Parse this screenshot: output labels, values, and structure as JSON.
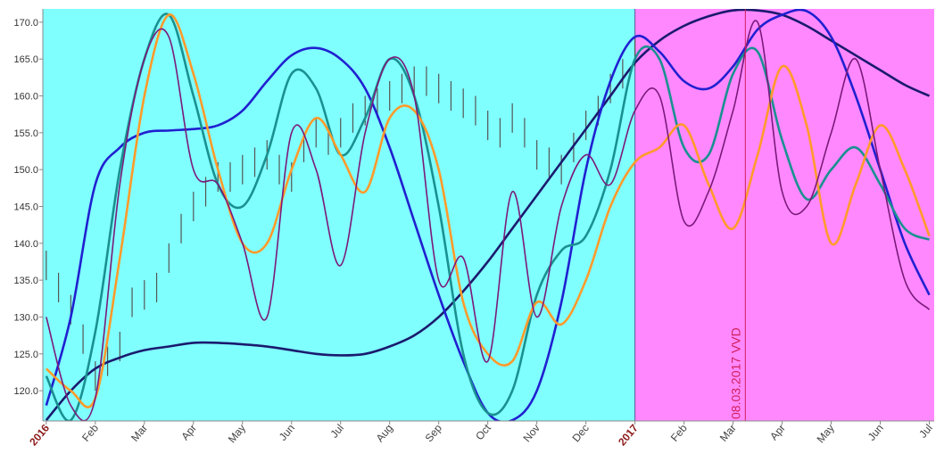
{
  "chart_data": {
    "type": "line",
    "xlim": [
      -0.07,
      18.1
    ],
    "ylim": [
      115.9,
      171.8
    ],
    "xticks": [
      {
        "value": 0,
        "label": "2016"
      },
      {
        "value": 1,
        "label": "Feb"
      },
      {
        "value": 2,
        "label": "Mar"
      },
      {
        "value": 3,
        "label": "Apr"
      },
      {
        "value": 4,
        "label": "May"
      },
      {
        "value": 5,
        "label": "Jun"
      },
      {
        "value": 6,
        "label": "Jul"
      },
      {
        "value": 7,
        "label": "Aug"
      },
      {
        "value": 8,
        "label": "Sep"
      },
      {
        "value": 9,
        "label": "Oct"
      },
      {
        "value": 10,
        "label": "Nov"
      },
      {
        "value": 11,
        "label": "Dec"
      },
      {
        "value": 12,
        "label": "2017"
      },
      {
        "value": 13,
        "label": "Feb"
      },
      {
        "value": 14,
        "label": "Mar"
      },
      {
        "value": 15,
        "label": "Apr"
      },
      {
        "value": 16,
        "label": "May"
      },
      {
        "value": 17,
        "label": "Jun"
      },
      {
        "value": 18,
        "label": "Jul"
      }
    ],
    "yticks": [
      {
        "value": 120,
        "label": "120.0"
      },
      {
        "value": 125,
        "label": "125.0"
      },
      {
        "value": 130,
        "label": "130.0"
      },
      {
        "value": 135,
        "label": "135.0"
      },
      {
        "value": 140,
        "label": "140.0"
      },
      {
        "value": 145,
        "label": "145.0"
      },
      {
        "value": 150,
        "label": "150.0"
      },
      {
        "value": 155,
        "label": "155.0"
      },
      {
        "value": 160,
        "label": "160.0"
      },
      {
        "value": 165,
        "label": "165.0"
      },
      {
        "value": 170,
        "label": "170.0"
      }
    ],
    "shading": [
      {
        "start": -0.07,
        "end": 12,
        "color": "#80ffff"
      },
      {
        "start": 12,
        "end": 18.1,
        "color": "#ff88ff"
      }
    ],
    "annotation": {
      "text": "08.03.2017 VVD",
      "x": 14.25,
      "color": "#d0205a"
    },
    "bars": {
      "color": "#555555",
      "x": [
        0,
        0.25,
        0.5,
        0.75,
        1,
        1.25,
        1.5,
        1.75,
        2,
        2.25,
        2.5,
        2.75,
        3,
        3.25,
        3.5,
        3.75,
        4,
        4.25,
        4.5,
        4.75,
        5,
        5.25,
        5.5,
        5.75,
        6,
        6.25,
        6.5,
        6.75,
        7,
        7.25,
        7.5,
        7.75,
        8,
        8.25,
        8.5,
        8.75,
        9,
        9.25,
        9.5,
        9.75,
        10,
        10.25,
        10.5,
        10.75,
        11,
        11.25,
        11.5,
        11.75,
        12
      ],
      "high": [
        139,
        136,
        133,
        129,
        124,
        126,
        128,
        134,
        135,
        136,
        140,
        144,
        147,
        149,
        151,
        151,
        152,
        153,
        154,
        152,
        151,
        155,
        157,
        156,
        157,
        159,
        160,
        161,
        162,
        163,
        164,
        164,
        163,
        162,
        161,
        160,
        158,
        157,
        159,
        157,
        154,
        153,
        152,
        155,
        158,
        160,
        163,
        165,
        168
      ],
      "low": [
        135,
        132,
        129,
        125,
        120,
        122,
        124,
        130,
        131,
        132,
        136,
        140,
        143,
        145,
        147,
        147,
        148,
        149,
        150,
        148,
        147,
        151,
        153,
        152,
        153,
        155,
        156,
        157,
        158,
        159,
        160,
        160,
        159,
        158,
        157,
        156,
        154,
        153,
        155,
        153,
        150,
        149,
        148,
        151,
        154,
        156,
        159,
        161,
        164
      ]
    },
    "x": [
      0,
      0.5,
      1,
      1.5,
      2,
      2.5,
      3,
      3.5,
      4,
      4.5,
      5,
      5.5,
      6,
      6.5,
      7,
      7.5,
      8,
      8.5,
      9,
      9.5,
      10,
      10.5,
      11,
      11.5,
      12,
      12.5,
      13,
      13.5,
      14,
      14.5,
      15,
      15.5,
      16,
      16.5,
      17,
      17.5,
      18
    ],
    "series": [
      {
        "color": "#1a1a6e",
        "values": [
          116,
          120,
          123,
          124.5,
          125.5,
          126,
          126.5,
          126.5,
          126.3,
          126,
          125.5,
          125,
          124.8,
          125,
          126,
          127.5,
          130,
          133.5,
          137.5,
          142,
          146.5,
          151,
          155.5,
          160,
          164.5,
          167.5,
          169.5,
          170.8,
          171.6,
          171.6,
          171,
          169.5,
          167.5,
          165.5,
          163.5,
          161.5,
          160
        ]
      },
      {
        "color": "#2020d0",
        "values": [
          118,
          130,
          148,
          153,
          155,
          155.3,
          155.5,
          156,
          158,
          162,
          165.5,
          166.5,
          165,
          161,
          153,
          143,
          133,
          124,
          117,
          116,
          120,
          132,
          150,
          162,
          168,
          166,
          162,
          161,
          164,
          169,
          171,
          171.5,
          168,
          160,
          150,
          140,
          133
        ]
      },
      {
        "color": "#1a9090",
        "values": [
          122,
          116,
          128,
          150,
          165,
          171,
          160,
          148,
          145,
          152,
          163,
          161,
          152,
          157,
          165,
          160,
          145,
          125,
          117,
          120,
          133,
          139,
          141,
          150,
          165,
          165,
          153,
          152,
          163,
          166,
          154,
          146,
          150,
          153,
          148,
          142,
          140.5
        ]
      },
      {
        "color": "#ff9a2a",
        "values": [
          123,
          120,
          119,
          138,
          160,
          171,
          163,
          150,
          140,
          140,
          150,
          157,
          152,
          147,
          157,
          158,
          150,
          132,
          125,
          124,
          132,
          129,
          135,
          145,
          151,
          153,
          156,
          148,
          142,
          152,
          164,
          156,
          140,
          148,
          156,
          150,
          141
        ]
      },
      {
        "color": "#7a1a7a",
        "values": [
          130,
          118,
          119,
          148,
          165,
          168,
          150,
          148,
          140,
          130,
          155,
          150,
          137,
          155,
          165,
          160,
          135,
          138,
          124,
          147,
          130,
          145,
          152,
          148,
          158,
          160,
          143,
          147,
          158,
          170,
          147,
          145,
          155,
          165,
          150,
          135,
          131
        ]
      }
    ]
  }
}
